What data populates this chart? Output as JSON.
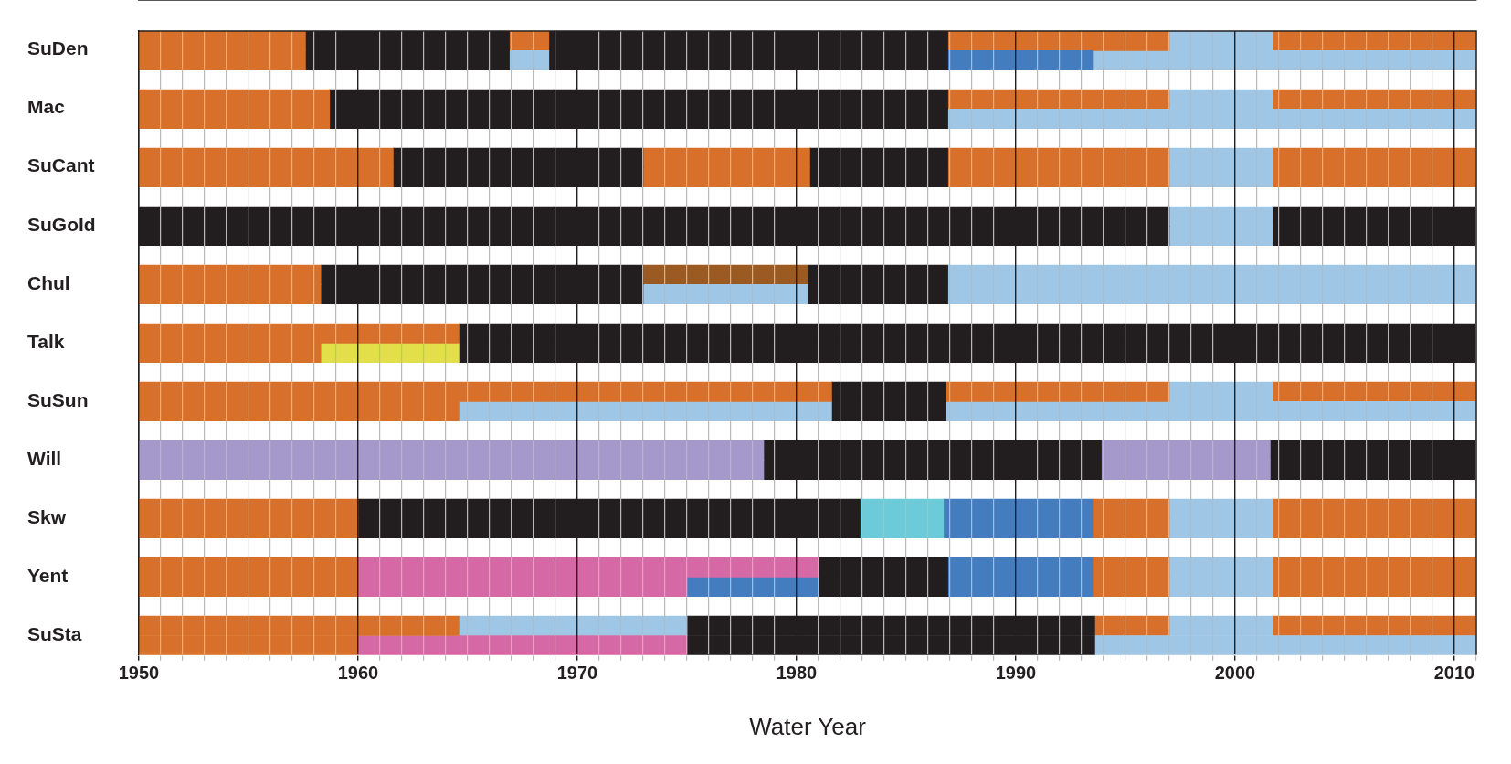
{
  "chart_data": {
    "type": "bar",
    "orientation": "horizontal",
    "xlabel": "Water Year",
    "categories": [
      "SuDen",
      null,
      null,
      "Mac",
      null,
      null,
      "SuCant",
      null,
      null,
      "SuGold",
      null,
      null,
      "Chul",
      null,
      null,
      "Talk",
      null,
      null,
      "SuSun",
      null,
      null,
      "Will",
      null,
      null,
      "Skw",
      null,
      null,
      "Yent",
      null,
      null,
      "SuSta",
      null
    ],
    "xlim": [
      1950,
      2011
    ],
    "xticks": [
      1950,
      {
        "value": 1951,
        "label": null
      },
      {
        "value": 1952,
        "label": null
      },
      {
        "value": 1953,
        "label": null
      },
      {
        "value": 1954,
        "label": null
      },
      {
        "value": 1955,
        "label": null
      },
      {
        "value": 1956,
        "label": null
      },
      {
        "value": 1957,
        "label": null
      },
      {
        "value": 1958,
        "label": null
      },
      {
        "value": 1959,
        "label": null
      },
      1960,
      {
        "value": 1961,
        "label": null
      },
      {
        "value": 1962,
        "label": null
      },
      {
        "value": 1963,
        "label": null
      },
      {
        "value": 1964,
        "label": null
      },
      {
        "value": 1965,
        "label": null
      },
      {
        "value": 1966,
        "label": null
      },
      {
        "value": 1967,
        "label": null
      },
      {
        "value": 1968,
        "label": null
      },
      {
        "value": 1969,
        "label": null
      },
      1970,
      {
        "value": 1971,
        "label": null
      },
      {
        "value": 1972,
        "label": null
      },
      {
        "value": 1973,
        "label": null
      },
      {
        "value": 1974,
        "label": null
      },
      {
        "value": 1975,
        "label": null
      },
      {
        "value": 1976,
        "label": null
      },
      {
        "value": 1977,
        "label": null
      },
      {
        "value": 1978,
        "label": null
      },
      {
        "value": 1979,
        "label": null
      },
      1980,
      {
        "value": 1981,
        "label": null
      },
      {
        "value": 1982,
        "label": null
      },
      {
        "value": 1983,
        "label": null
      },
      {
        "value": 1984,
        "label": null
      },
      {
        "value": 1985,
        "label": null
      },
      {
        "value": 1986,
        "label": null
      },
      {
        "value": 1987,
        "label": null
      },
      {
        "value": 1988,
        "label": null
      },
      {
        "value": 1989,
        "label": null
      },
      1990,
      {
        "value": 1991,
        "label": null
      },
      {
        "value": 1992,
        "label": null
      },
      {
        "value": 1993,
        "label": null
      },
      {
        "value": 1994,
        "label": null
      },
      {
        "value": 1995,
        "label": null
      },
      {
        "value": 1996,
        "label": null
      },
      {
        "value": 1997,
        "label": null
      },
      {
        "value": 1998,
        "label": null
      },
      {
        "value": 1999,
        "label": null
      },
      2000,
      {
        "value": 2001,
        "label": null
      },
      {
        "value": 2002,
        "label": null
      },
      {
        "value": 2003,
        "label": null
      },
      {
        "value": 2004,
        "label": null
      },
      {
        "value": 2005,
        "label": null
      },
      {
        "value": 2006,
        "label": null
      },
      {
        "value": 2007,
        "label": null
      },
      {
        "value": 2008,
        "label": null
      },
      {
        "value": 2009,
        "label": null
      },
      2010,
      {
        "value": 2011,
        "label": null
      }
    ],
    "grid": "x",
    "legend": false,
    "series": [
      {
        "base": [
          1950,
          1950,
          null,
          1950,
          1950,
          null,
          1950,
          1950,
          null,
          1950,
          1950,
          null,
          1950,
          1950,
          null,
          1950,
          1950,
          null,
          1950,
          1950,
          null,
          1950,
          1950,
          null,
          1950,
          1950,
          null,
          1950,
          1950,
          null,
          1950,
          1950
        ],
        "values": [
          7.6,
          7.6,
          null,
          8.7,
          8.7,
          null,
          11.6,
          11.6,
          null,
          47,
          47,
          null,
          8.3,
          8.3,
          null,
          14.6,
          8.3,
          null,
          31.6,
          14.6,
          null,
          28.5,
          28.5,
          null,
          10,
          10,
          null,
          10,
          10,
          null,
          14.6,
          10
        ],
        "colors": [
          "#d97029",
          "#d97029",
          null,
          "#d97029",
          "#d97029",
          null,
          "#d97029",
          "#d97029",
          null,
          "#221e1f",
          "#221e1f",
          null,
          "#d97029",
          "#d97029",
          null,
          "#d97029",
          "#d97029",
          null,
          "#d97029",
          "#d97029",
          null,
          "#a598ca",
          "#a598ca",
          null,
          "#d97029",
          "#d97029",
          null,
          "#d97029",
          "#d97029",
          null,
          "#d97029",
          "#d97029"
        ]
      },
      {
        "base": [
          1957.6,
          1957.6,
          null,
          1958.7,
          1958.7,
          null,
          1961.6,
          1961.6,
          null,
          1997,
          1997,
          null,
          1958.3,
          1958.3,
          null,
          1964.6,
          1958.3,
          null,
          1981.6,
          1964.6,
          null,
          1978.5,
          1978.5,
          null,
          1960,
          1960,
          null,
          1960,
          1960,
          null,
          1964.6,
          1960
        ],
        "values": [
          9.3,
          9.3,
          null,
          28.2,
          28.2,
          null,
          11.4,
          11.4,
          null,
          4.7,
          4.7,
          null,
          14.7,
          14.7,
          null,
          46.4,
          6.3,
          null,
          5.2,
          17,
          null,
          15.4,
          15.4,
          null,
          22.9,
          22.9,
          null,
          21,
          15,
          null,
          10.4,
          15
        ],
        "colors": [
          "#221e1f",
          "#221e1f",
          null,
          "#221e1f",
          "#221e1f",
          null,
          "#221e1f",
          "#221e1f",
          null,
          "#a0c6e6",
          "#a0c6e6",
          null,
          "#221e1f",
          "#221e1f",
          null,
          "#221e1f",
          "#e3df4a",
          null,
          "#221e1f",
          "#a0c6e6",
          null,
          "#221e1f",
          "#221e1f",
          null,
          "#221e1f",
          "#221e1f",
          null,
          "#d668a6",
          "#d668a6",
          null,
          "#a0c6e6",
          "#d668a6"
        ]
      },
      {
        "base": [
          1966.9,
          1966.9,
          null,
          1986.9,
          1986.9,
          null,
          1973,
          1973,
          null,
          2001.7,
          2001.7,
          null,
          1973,
          1973,
          null,
          null,
          1964.6,
          null,
          1986.8,
          1981.6,
          null,
          1993.9,
          1993.9,
          null,
          1982.9,
          1982.9,
          null,
          1981,
          1975,
          null,
          1975,
          1975
        ],
        "values": [
          1.8,
          1.8,
          null,
          10.1,
          24.1,
          null,
          7.6,
          7.6,
          null,
          9.3,
          9.3,
          null,
          7.5,
          7.5,
          null,
          null,
          46.4,
          null,
          10.2,
          5.2,
          null,
          7.7,
          7.7,
          null,
          3.8,
          3.8,
          null,
          5.9,
          6,
          null,
          18.6,
          18.6
        ],
        "colors": [
          "#d97029",
          "#a0c6e6",
          null,
          "#d97029",
          "#a0c6e6",
          null,
          "#d97029",
          "#d97029",
          null,
          "#221e1f",
          "#221e1f",
          null,
          "#9a5a22",
          "#a0c6e6",
          null,
          null,
          "#221e1f",
          null,
          "#d97029",
          "#221e1f",
          null,
          "#a598ca",
          "#a598ca",
          null,
          "#6ccbd8",
          "#6ccbd8",
          null,
          "#221e1f",
          "#447cc0",
          null,
          "#221e1f",
          "#221e1f"
        ]
      },
      {
        "base": [
          1968.7,
          1968.7,
          null,
          1997,
          null,
          null,
          1980.6,
          1980.6,
          null,
          null,
          null,
          null,
          1980.5,
          1980.5,
          null,
          null,
          null,
          null,
          1997,
          1986.8,
          null,
          2001.6,
          2001.6,
          null,
          1986.7,
          1986.7,
          null,
          1986.9,
          1981,
          null,
          1993.6,
          1993.6
        ],
        "values": [
          18.2,
          18.2,
          null,
          4.7,
          null,
          null,
          6.3,
          6.3,
          null,
          null,
          null,
          null,
          6.4,
          6.4,
          null,
          null,
          null,
          null,
          4.7,
          24.2,
          null,
          9.4,
          9.4,
          null,
          6.8,
          6.8,
          null,
          6.6,
          5.9,
          null,
          3.4,
          17.4
        ],
        "colors": [
          "#221e1f",
          "#221e1f",
          null,
          "#a0c6e6",
          null,
          null,
          "#221e1f",
          "#221e1f",
          null,
          null,
          null,
          null,
          "#221e1f",
          "#221e1f",
          null,
          null,
          null,
          null,
          "#a0c6e6",
          "#a0c6e6",
          null,
          "#221e1f",
          "#221e1f",
          null,
          "#447cc0",
          "#447cc0",
          null,
          "#447cc0",
          "#221e1f",
          null,
          "#d97029",
          "#a0c6e6"
        ]
      },
      {
        "base": [
          1986.9,
          1986.9,
          null,
          2001.7,
          null,
          null,
          1986.9,
          1986.9,
          null,
          null,
          null,
          null,
          1986.9,
          1986.9,
          null,
          null,
          null,
          null,
          2001.7,
          null,
          null,
          null,
          null,
          null,
          1993.5,
          1993.5,
          null,
          1993.5,
          1986.9,
          null,
          1997,
          null
        ],
        "values": [
          10.1,
          6.6,
          null,
          9.3,
          null,
          null,
          10.1,
          10.1,
          null,
          null,
          null,
          null,
          24.1,
          24.1,
          null,
          null,
          null,
          null,
          9.3,
          null,
          null,
          null,
          null,
          null,
          3.5,
          3.5,
          null,
          3.5,
          6.6,
          null,
          4.7,
          null
        ],
        "colors": [
          "#d97029",
          "#447cc0",
          null,
          "#d97029",
          null,
          null,
          "#d97029",
          "#d97029",
          null,
          null,
          null,
          null,
          "#a0c6e6",
          "#a0c6e6",
          null,
          null,
          null,
          null,
          "#d97029",
          null,
          null,
          null,
          null,
          null,
          "#d97029",
          "#d97029",
          null,
          "#d97029",
          "#447cc0",
          null,
          "#a0c6e6",
          null
        ]
      },
      {
        "base": [
          1997,
          1993.5,
          null,
          null,
          null,
          null,
          1997,
          1997,
          null,
          null,
          null,
          null,
          null,
          null,
          null,
          null,
          null,
          null,
          null,
          null,
          null,
          null,
          null,
          null,
          1997,
          1997,
          null,
          1997,
          1993.5,
          null,
          2001.7,
          null
        ],
        "values": [
          4.7,
          17.5,
          null,
          null,
          null,
          null,
          4.7,
          4.7,
          null,
          null,
          null,
          null,
          null,
          null,
          null,
          null,
          null,
          null,
          null,
          null,
          null,
          null,
          null,
          null,
          4.7,
          4.7,
          null,
          4.7,
          3.5,
          null,
          9.3,
          null
        ],
        "colors": [
          "#a0c6e6",
          "#a0c6e6",
          null,
          null,
          null,
          null,
          "#a0c6e6",
          "#a0c6e6",
          null,
          null,
          null,
          null,
          null,
          null,
          null,
          null,
          null,
          null,
          null,
          null,
          null,
          null,
          null,
          null,
          "#a0c6e6",
          "#a0c6e6",
          null,
          "#a0c6e6",
          "#d97029",
          null,
          "#d97029",
          null
        ]
      },
      {
        "base": [
          2001.7,
          null,
          null,
          null,
          null,
          null,
          2001.7,
          2001.7,
          null,
          null,
          null,
          null,
          null,
          null,
          null,
          null,
          null,
          null,
          null,
          null,
          null,
          null,
          null,
          null,
          2001.7,
          2001.7,
          null,
          2001.7,
          1997,
          null,
          null,
          null
        ],
        "values": [
          9.3,
          null,
          null,
          null,
          null,
          null,
          9.3,
          9.3,
          null,
          null,
          null,
          null,
          null,
          null,
          null,
          null,
          null,
          null,
          null,
          null,
          null,
          null,
          null,
          null,
          9.3,
          9.3,
          null,
          9.3,
          4.7,
          null,
          null,
          null
        ],
        "colors": [
          "#d97029",
          null,
          null,
          null,
          null,
          null,
          "#d97029",
          "#d97029",
          null,
          null,
          null,
          null,
          null,
          null,
          null,
          null,
          null,
          null,
          null,
          null,
          null,
          null,
          null,
          null,
          "#d97029",
          "#d97029",
          null,
          "#d97029",
          "#a0c6e6",
          null,
          null,
          null
        ]
      },
      {
        "base": [
          null,
          null,
          null,
          null,
          null,
          null,
          null,
          null,
          null,
          null,
          null,
          null,
          null,
          null,
          null,
          null,
          null,
          null,
          null,
          null,
          null,
          null,
          null,
          null,
          null,
          null,
          null,
          null,
          2001.7,
          null,
          null,
          null
        ],
        "values": [
          null,
          null,
          null,
          null,
          null,
          null,
          null,
          null,
          null,
          null,
          null,
          null,
          null,
          null,
          null,
          null,
          null,
          null,
          null,
          null,
          null,
          null,
          null,
          null,
          null,
          null,
          null,
          null,
          9.3,
          null,
          null,
          null
        ],
        "colors": [
          null,
          null,
          null,
          null,
          null,
          null,
          null,
          null,
          null,
          null,
          null,
          null,
          null,
          null,
          null,
          null,
          null,
          null,
          null,
          null,
          null,
          null,
          null,
          null,
          null,
          null,
          null,
          null,
          "#d97029",
          null,
          null,
          null
        ]
      }
    ]
  }
}
